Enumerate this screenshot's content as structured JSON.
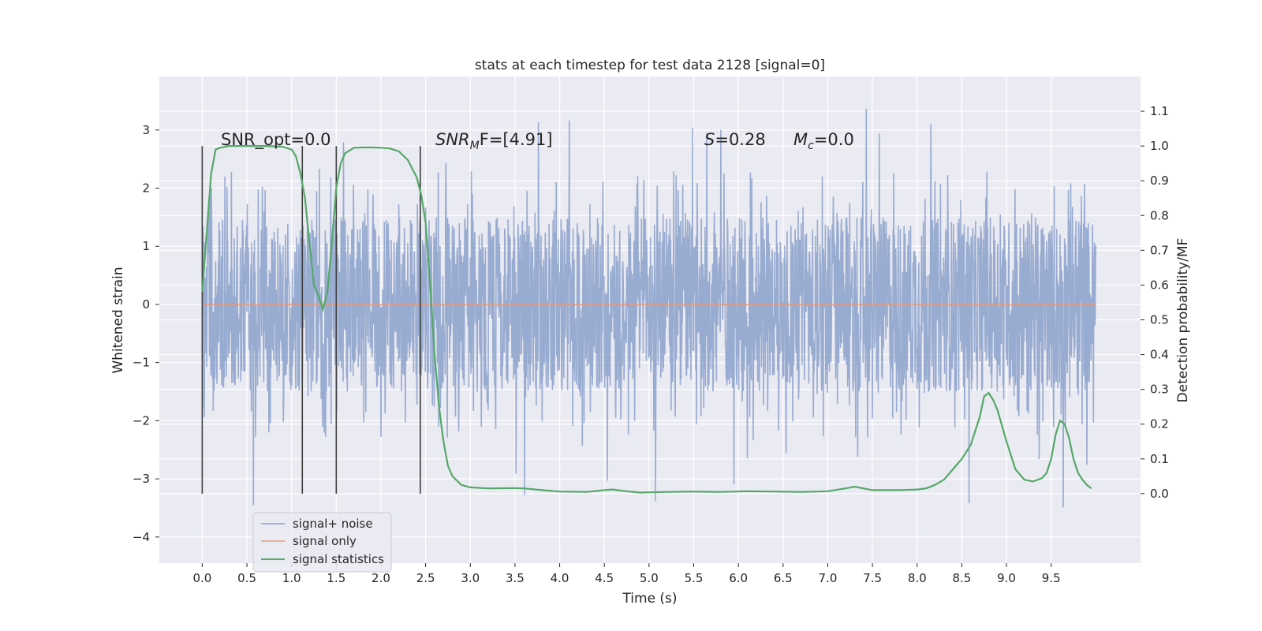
{
  "chart_data": {
    "type": "line",
    "title": "stats at each timestep for test data 2128 [signal=0]",
    "xlabel": "Time (s)",
    "ylabel": "Whitened strain",
    "y2label": "Detection probability/MF",
    "xlim": [
      -0.48,
      10.5
    ],
    "ylim": [
      -4.45,
      3.92
    ],
    "y2lim": [
      -0.2,
      1.2
    ],
    "x_ticks": [
      0.0,
      0.5,
      1.0,
      1.5,
      2.0,
      2.5,
      3.0,
      3.5,
      4.0,
      4.5,
      5.0,
      5.5,
      6.0,
      6.5,
      7.0,
      7.5,
      8.0,
      8.5,
      9.0,
      9.5
    ],
    "x_tick_labels": [
      "0.0",
      "0.5",
      "1.0",
      "1.5",
      "2.0",
      "2.5",
      "3.0",
      "3.5",
      "4.0",
      "4.5",
      "5.0",
      "5.5",
      "6.0",
      "6.5",
      "7.0",
      "7.5",
      "8.0",
      "8.5",
      "9.0",
      "9.5"
    ],
    "y_ticks": [
      -4,
      -3,
      -2,
      -1,
      0,
      1,
      2,
      3
    ],
    "y_tick_labels": [
      "−4",
      "−3",
      "−2",
      "−1",
      "0",
      "1",
      "2",
      "3"
    ],
    "y2_ticks": [
      0.0,
      0.1,
      0.2,
      0.3,
      0.4,
      0.5,
      0.6,
      0.7,
      0.8,
      0.9,
      1.0,
      1.1
    ],
    "y2_tick_labels": [
      "0.0",
      "0.1",
      "0.2",
      "0.3",
      "0.4",
      "0.5",
      "0.6",
      "0.7",
      "0.8",
      "0.9",
      "1.0",
      "1.1"
    ],
    "grid": true,
    "legend_position": "lower-left",
    "annotations": {
      "snr_opt": "SNR_opt=0.0",
      "snr_mf_main": "SNR",
      "snr_mf_sub": "M",
      "snr_mf_rest": "F=[4.91]",
      "s_main": "S",
      "s_rest": "=0.28",
      "mc_main": "M",
      "mc_sub": "c",
      "mc_rest": "=0.0"
    },
    "vertical_markers": [
      0.0,
      1.12,
      1.5,
      2.44
    ],
    "noise_envelope": {
      "x": [
        0.0,
        10.0
      ],
      "typical_upper": 1.5,
      "typical_lower": -1.6,
      "peak_upper": 3.5,
      "peak_lower": -3.55
    },
    "series": [
      {
        "name": "signal+ noise",
        "color": "#8fa4cc",
        "x_range": [
          0.0,
          10.0
        ],
        "note_values": "dense noise, amplitude mostly within ±1.5, spikes to about ±3.5"
      },
      {
        "name": "signal only",
        "color": "#e49a7b",
        "x": [
          0.0,
          10.0
        ],
        "values": [
          0.0,
          0.0
        ]
      },
      {
        "name": "signal statistics",
        "color": "#55a868",
        "axis": "right",
        "x": [
          0.0,
          0.05,
          0.1,
          0.15,
          0.2,
          0.3,
          0.5,
          0.7,
          0.9,
          1.0,
          1.05,
          1.1,
          1.15,
          1.2,
          1.25,
          1.3,
          1.35,
          1.4,
          1.45,
          1.5,
          1.55,
          1.6,
          1.7,
          1.8,
          1.9,
          2.0,
          2.1,
          2.2,
          2.3,
          2.4,
          2.45,
          2.5,
          2.55,
          2.6,
          2.65,
          2.7,
          2.75,
          2.8,
          2.9,
          3.0,
          3.2,
          3.5,
          3.6,
          3.8,
          4.0,
          4.3,
          4.5,
          4.6,
          4.7,
          4.9,
          5.2,
          5.5,
          5.8,
          6.1,
          6.4,
          6.7,
          7.0,
          7.2,
          7.3,
          7.5,
          7.8,
          8.0,
          8.1,
          8.2,
          8.3,
          8.4,
          8.5,
          8.6,
          8.7,
          8.75,
          8.8,
          8.85,
          8.9,
          9.0,
          9.1,
          9.2,
          9.3,
          9.4,
          9.45,
          9.5,
          9.55,
          9.6,
          9.65,
          9.7,
          9.75,
          9.8,
          9.85,
          9.9,
          9.95
        ],
        "values": [
          0.58,
          0.75,
          0.92,
          0.99,
          0.995,
          1.0,
          1.0,
          1.0,
          0.998,
          0.99,
          0.97,
          0.92,
          0.85,
          0.72,
          0.6,
          0.57,
          0.53,
          0.58,
          0.72,
          0.88,
          0.95,
          0.98,
          0.995,
          0.996,
          0.996,
          0.995,
          0.993,
          0.985,
          0.96,
          0.91,
          0.86,
          0.78,
          0.6,
          0.4,
          0.25,
          0.15,
          0.08,
          0.05,
          0.025,
          0.018,
          0.015,
          0.016,
          0.015,
          0.01,
          0.006,
          0.005,
          0.01,
          0.012,
          0.008,
          0.003,
          0.005,
          0.006,
          0.005,
          0.007,
          0.006,
          0.005,
          0.007,
          0.015,
          0.02,
          0.01,
          0.01,
          0.012,
          0.015,
          0.025,
          0.04,
          0.07,
          0.1,
          0.14,
          0.22,
          0.28,
          0.29,
          0.27,
          0.24,
          0.15,
          0.07,
          0.04,
          0.035,
          0.045,
          0.06,
          0.1,
          0.17,
          0.21,
          0.2,
          0.16,
          0.1,
          0.06,
          0.04,
          0.025,
          0.015
        ]
      }
    ]
  }
}
